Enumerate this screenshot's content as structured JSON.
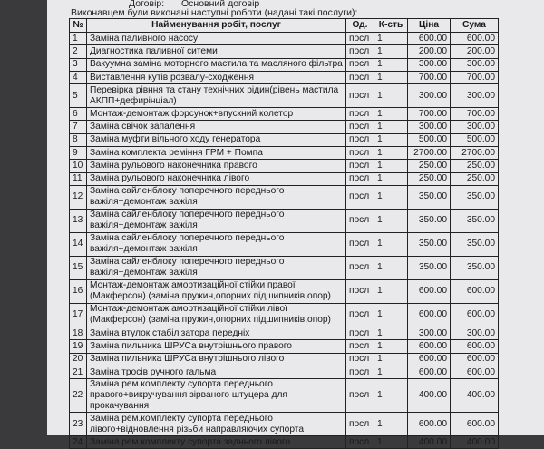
{
  "header": {
    "contract_label": "Договір:",
    "contract_value": "Основний договір",
    "intro": "Виконавцем були виконані наступні роботи (надані такі послуги):"
  },
  "columns": [
    "№",
    "Найменування робіт, послуг",
    "Од.",
    "К-сть",
    "Ціна",
    "Сума"
  ],
  "rows": [
    [
      "1",
      "Заміна паливного насосу",
      "посл",
      "1",
      "600.00",
      "600.00"
    ],
    [
      "2",
      "Диагностика паливної ситеми",
      "посл",
      "1",
      "200.00",
      "200.00"
    ],
    [
      "3",
      "Вакуумна заміна моторного мастила та масляного фільтра",
      "посл",
      "1",
      "300.00",
      "300.00"
    ],
    [
      "4",
      "Виставлення кутів розвалу-сходження",
      "посл",
      "1",
      "700.00",
      "700.00"
    ],
    [
      "5",
      "Перевірка рівння та стану технічних рідин(рівень мастила АКПП+дефирінціал)",
      "посл",
      "1",
      "300.00",
      "300.00"
    ],
    [
      "6",
      "Монтаж-демонтаж форсунок+впускний колетор",
      "посл",
      "1",
      "700.00",
      "700.00"
    ],
    [
      "7",
      "Заміна свічок запалення",
      "посл",
      "1",
      "300.00",
      "300.00"
    ],
    [
      "8",
      "Заміна муфти вільного ходу генератора",
      "посл",
      "1",
      "500.00",
      "500.00"
    ],
    [
      "9",
      "Заміна комплекта реміння ГРМ + Помпа",
      "посл",
      "1",
      "2700.00",
      "2700.00"
    ],
    [
      "10",
      "Заміна рульового наконечника правого",
      "посл",
      "1",
      "250.00",
      "250.00"
    ],
    [
      "11",
      "Заміна рульового наконечника лівого",
      "посл",
      "1",
      "250.00",
      "250.00"
    ],
    [
      "12",
      "Заміна сайленблоку поперечного переднього важіля+демонтаж важіля",
      "посл",
      "1",
      "350.00",
      "350.00"
    ],
    [
      "13",
      "Заміна сайленблоку поперечного переднього важіля+демонтаж важіля",
      "посл",
      "1",
      "350.00",
      "350.00"
    ],
    [
      "14",
      "Заміна сайленблоку поперечного переднього важіля+демонтаж важіля",
      "посл",
      "1",
      "350.00",
      "350.00"
    ],
    [
      "15",
      "Заміна сайленблоку поперечного переднього важіля+демонтаж важіля",
      "посл",
      "1",
      "350.00",
      "350.00"
    ],
    [
      "16",
      "Монтаж-демонтаж амортизаційної стійки правої (Макферсон) (заміна пружин,опорних підшипників,опор)",
      "посл",
      "1",
      "600.00",
      "600.00"
    ],
    [
      "17",
      "Монтаж-демонтаж амортизаційної стійки лівої (Макферсон) (заміна пружин,опорних підшипників,опор)",
      "посл",
      "1",
      "600.00",
      "600.00"
    ],
    [
      "18",
      "Заміна втулок стабілізатора передніх",
      "посл",
      "1",
      "300.00",
      "300.00"
    ],
    [
      "19",
      "Заміна пильника ШРУСа внутрішнього правого",
      "посл",
      "1",
      "600.00",
      "600.00"
    ],
    [
      "20",
      "Заміна пильника ШРУСа внутрішнього лівого",
      "посл",
      "1",
      "600.00",
      "600.00"
    ],
    [
      "21",
      "Заміна тросів ручного гальма",
      "посл",
      "1",
      "600.00",
      "600.00"
    ],
    [
      "22",
      "Заміна рем.комплекту супорта переднього правого+викручування зірваного штуцера для прокачування",
      "посл",
      "1",
      "400.00",
      "400.00"
    ],
    [
      "23",
      "Заміна рем.комплекту супорта переднього лівого+відновлення різьби направляючих супорта",
      "посл",
      "1",
      "600.00",
      "600.00"
    ],
    [
      "24",
      "Заміна рем.комплекту супорта заднього лівого",
      "посл",
      "1",
      "400.00",
      "400.00"
    ]
  ]
}
